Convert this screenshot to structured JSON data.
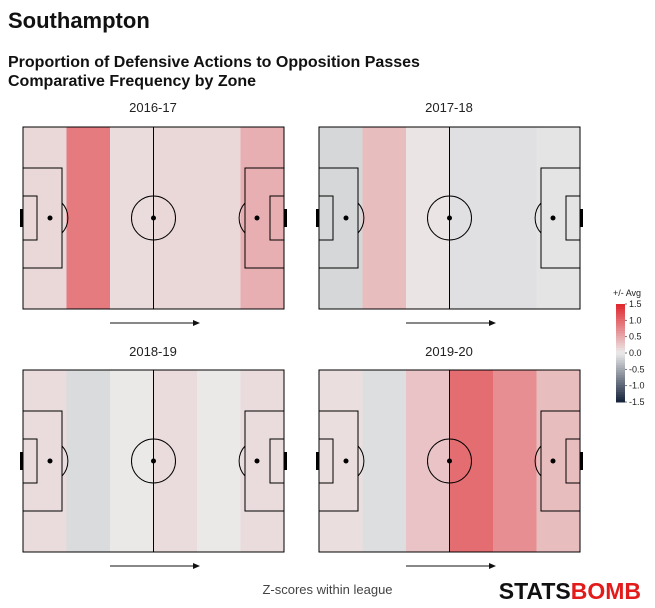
{
  "title": "Southampton",
  "subtitle_line1": "Proportion of Defensive Actions to Opposition Passes",
  "subtitle_line2": "Comparative Frequency by Zone",
  "caption": "Z-scores within league",
  "brand": {
    "part1": "STATS",
    "part2": "BOMB"
  },
  "colors": {
    "positive": "#e0242c",
    "neutral": "#ebebeb",
    "negative": "#14223a",
    "lines": "#000000"
  },
  "chart_data": {
    "type": "heatmap",
    "colorbar": {
      "title": "+/- Avg",
      "range": [
        -1.5,
        1.5
      ],
      "ticks": [
        "1.5",
        "1.0",
        "0.5",
        "0.0",
        "-0.5",
        "-1.0",
        "-1.5"
      ]
    },
    "panels": [
      {
        "title": "2016-17",
        "zones": [
          0.15,
          0.85,
          0.12,
          0.15,
          0.15,
          0.45
        ]
      },
      {
        "title": "2017-18",
        "zones": [
          -0.15,
          0.35,
          0.05,
          -0.08,
          -0.08,
          -0.05
        ]
      },
      {
        "title": "2018-19",
        "zones": [
          0.12,
          -0.12,
          0.02,
          0.12,
          0.02,
          0.12
        ]
      },
      {
        "title": "2019-20",
        "zones": [
          0.1,
          -0.1,
          0.3,
          0.95,
          0.7,
          0.35
        ]
      }
    ]
  }
}
